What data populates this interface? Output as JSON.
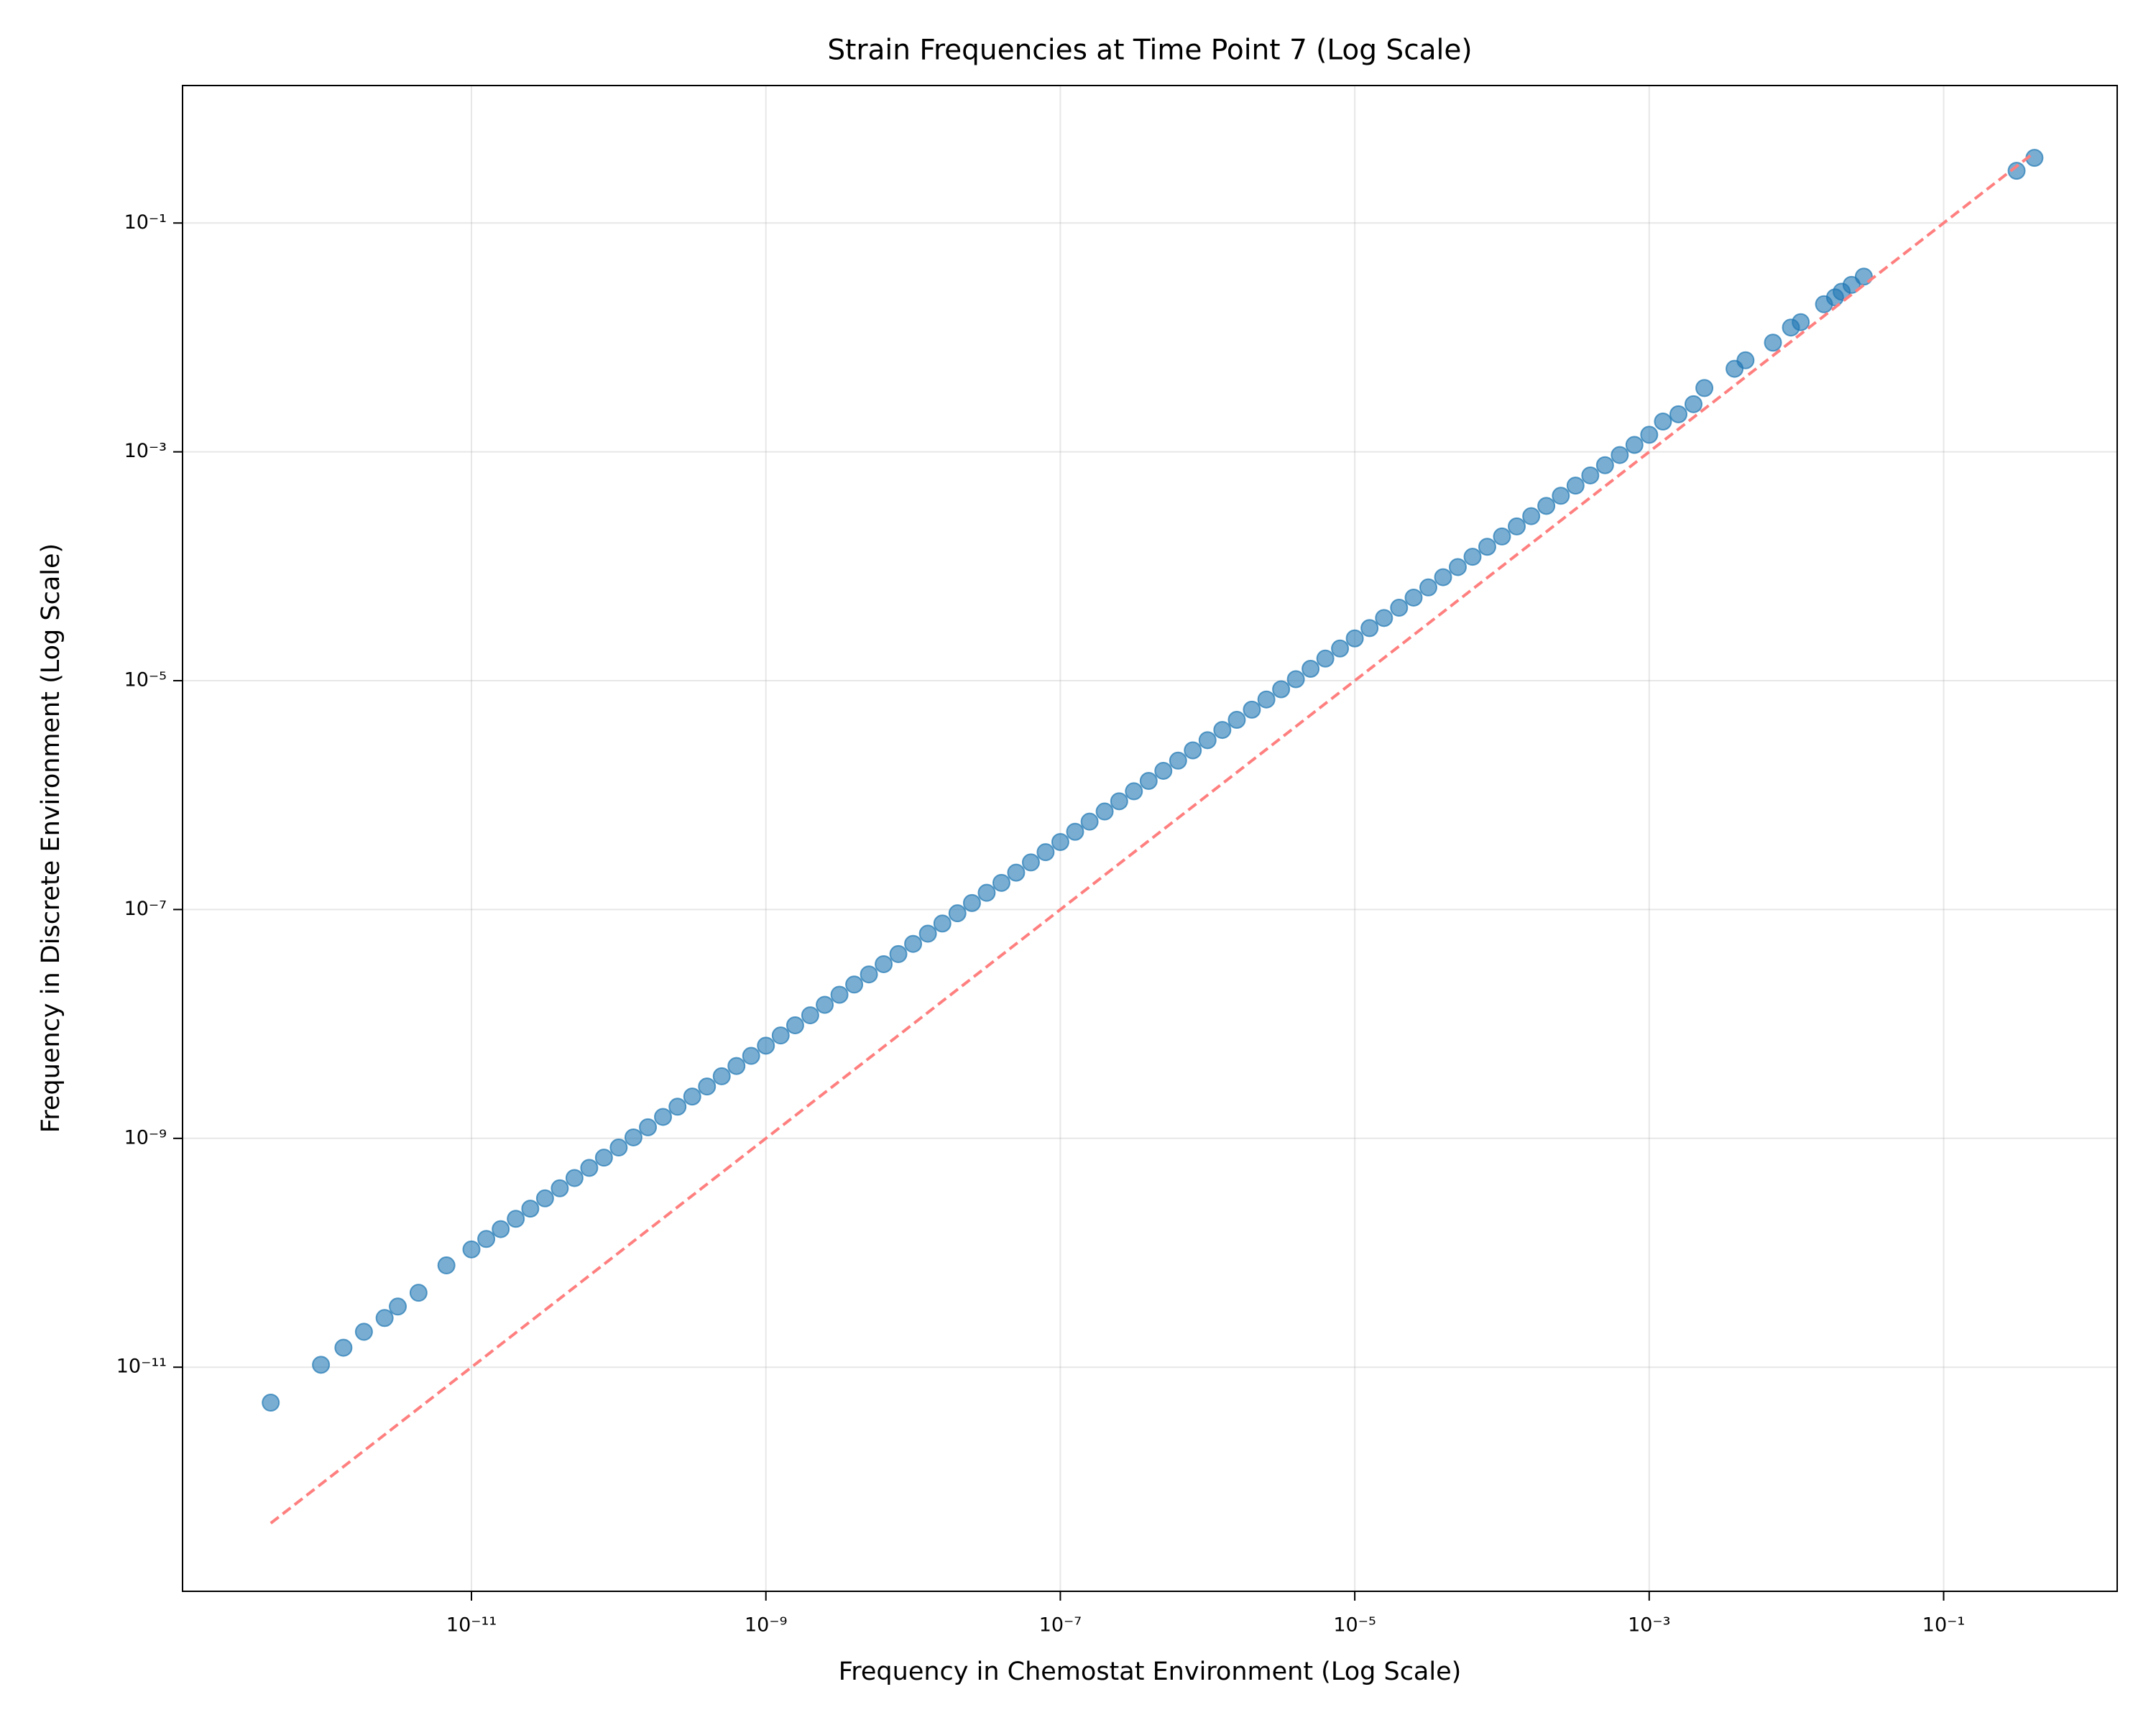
{
  "chart_data": {
    "type": "scatter",
    "title": "Strain Frequencies at Time Point 7 (Log Scale)",
    "x_label": "Frequency in Chemostat Environment (Log Scale)",
    "y_label": "Frequency in Discrete Environment (Log Scale)",
    "log_x": true,
    "log_y": true,
    "grid": true,
    "xlim": [
      1.09e-13,
      1.51
    ],
    "ylim": [
      1.1e-13,
      1.59
    ],
    "xticks": [
      {
        "value": 1e-11,
        "label": "10⁻¹¹"
      },
      {
        "value": 1e-09,
        "label": "10⁻⁹"
      },
      {
        "value": 1e-07,
        "label": "10⁻⁷"
      },
      {
        "value": 1e-05,
        "label": "10⁻⁵"
      },
      {
        "value": 0.001,
        "label": "10⁻³"
      },
      {
        "value": 0.1,
        "label": "10⁻¹"
      }
    ],
    "yticks": [
      {
        "value": 1e-11,
        "label": "10⁻¹¹"
      },
      {
        "value": 1e-09,
        "label": "10⁻⁹"
      },
      {
        "value": 1e-07,
        "label": "10⁻⁷"
      },
      {
        "value": 1e-05,
        "label": "10⁻⁵"
      },
      {
        "value": 0.001,
        "label": "10⁻³"
      },
      {
        "value": 0.1,
        "label": "10⁻¹"
      }
    ],
    "series": [
      {
        "color": "#1f77b4",
        "x": [
          4.33e-13,
          9.5e-13,
          1.35e-12,
          1.86e-12,
          2.57e-12,
          3.16e-12,
          4.37e-12,
          6.76e-12,
          1e-11,
          1.26e-11,
          1.58e-11,
          2e-11,
          2.51e-11,
          3.16e-11,
          3.98e-11,
          5.01e-11,
          6.31e-11,
          7.94e-11,
          1e-10,
          1.26e-10,
          1.58e-10,
          2e-10,
          2.51e-10,
          3.16e-10,
          3.98e-10,
          5.01e-10,
          6.31e-10,
          7.94e-10,
          1e-09,
          1.26e-09,
          1.58e-09,
          2e-09,
          2.51e-09,
          3.16e-09,
          3.98e-09,
          5.01e-09,
          6.31e-09,
          7.94e-09,
          1e-08,
          1.26e-08,
          1.58e-08,
          2e-08,
          2.51e-08,
          3.16e-08,
          3.98e-08,
          5.01e-08,
          6.31e-08,
          7.94e-08,
          1e-07,
          1.26e-07,
          1.58e-07,
          2e-07,
          2.51e-07,
          3.16e-07,
          3.98e-07,
          5.01e-07,
          6.31e-07,
          7.94e-07,
          1e-06,
          1.26e-06,
          1.58e-06,
          2e-06,
          2.51e-06,
          3.16e-06,
          3.98e-06,
          5.01e-06,
          6.31e-06,
          7.94e-06,
          1e-05,
          1.26e-05,
          1.58e-05,
          2e-05,
          2.51e-05,
          3.16e-05,
          3.98e-05,
          5.01e-05,
          6.31e-05,
          7.94e-05,
          0.0001,
          0.000126,
          0.000158,
          0.0002,
          0.000251,
          0.000316,
          0.000398,
          0.000501,
          0.000631,
          0.000794,
          0.001,
          0.00124,
          0.00158,
          0.002,
          0.00237,
          0.0038,
          0.00451,
          0.00693,
          0.00918,
          0.0107,
          0.0154,
          0.0183,
          0.0203,
          0.0237,
          0.0287,
          0.313,
          0.414
        ],
        "y": [
          4.9e-12,
          1.05e-11,
          1.48e-11,
          2.04e-11,
          2.69e-11,
          3.39e-11,
          4.47e-11,
          7.76e-11,
          1.07e-10,
          1.32e-10,
          1.61e-10,
          1.98e-10,
          2.43e-10,
          2.99e-10,
          3.66e-10,
          4.5e-10,
          5.52e-10,
          6.78e-10,
          8.32e-10,
          1.02e-09,
          1.25e-09,
          1.54e-09,
          1.89e-09,
          2.32e-09,
          2.84e-09,
          3.49e-09,
          4.29e-09,
          5.26e-09,
          6.46e-09,
          7.93e-09,
          9.73e-09,
          1.19e-08,
          1.47e-08,
          1.8e-08,
          2.21e-08,
          2.71e-08,
          3.33e-08,
          4.08e-08,
          5.01e-08,
          6.15e-08,
          7.55e-08,
          9.27e-08,
          1.14e-07,
          1.4e-07,
          1.71e-07,
          2.1e-07,
          2.58e-07,
          3.17e-07,
          3.89e-07,
          4.78e-07,
          5.86e-07,
          7.19e-07,
          8.83e-07,
          1.08e-06,
          1.33e-06,
          1.63e-06,
          2e-06,
          2.46e-06,
          3.02e-06,
          3.71e-06,
          4.55e-06,
          5.58e-06,
          6.85e-06,
          8.41e-06,
          1.03e-05,
          1.27e-05,
          1.56e-05,
          1.91e-05,
          2.34e-05,
          2.88e-05,
          3.53e-05,
          4.34e-05,
          5.32e-05,
          6.53e-05,
          8.02e-05,
          9.84e-05,
          0.000121,
          0.000148,
          0.000182,
          0.000223,
          0.000274,
          0.000337,
          0.000413,
          0.000507,
          0.000622,
          0.000764,
          0.000938,
          0.00115,
          0.00141,
          0.00184,
          0.00213,
          0.00261,
          0.00361,
          0.00532,
          0.00631,
          0.009,
          0.0122,
          0.0136,
          0.0195,
          0.0224,
          0.0251,
          0.0288,
          0.034,
          0.286,
          0.371
        ]
      }
    ],
    "reference": {
      "color": "#ff7f7f",
      "dashed": true,
      "x": [
        4.33e-13,
        0.414
      ],
      "y": [
        4.33e-13,
        0.414
      ]
    }
  }
}
